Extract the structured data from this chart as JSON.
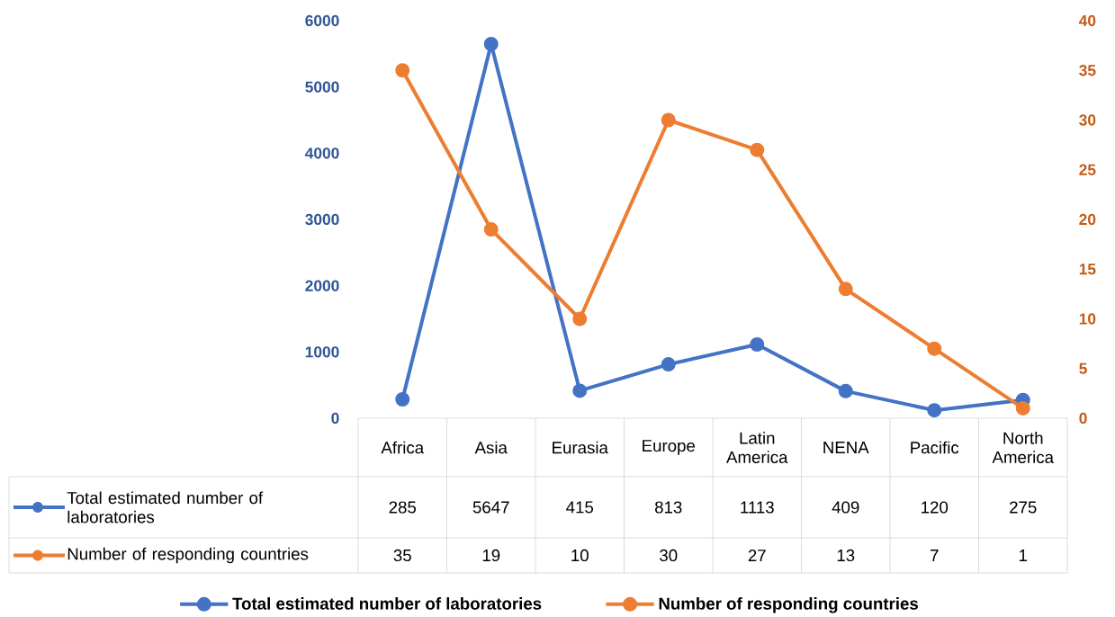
{
  "chart_data": {
    "type": "line",
    "categories": [
      "Africa",
      "Asia",
      "Eurasia",
      "Europe",
      "Latin America",
      "NENA",
      "Pacific",
      "North America"
    ],
    "series": [
      {
        "name": "Total estimated number of laboratories",
        "color": "#4472c4",
        "values": [
          285,
          5647,
          415,
          813,
          1113,
          409,
          120,
          275
        ]
      },
      {
        "name": "Number of responding countries",
        "color": "#ed7d31",
        "axis": "y2",
        "values": [
          35,
          19,
          10,
          30,
          27,
          13,
          7,
          1
        ]
      }
    ],
    "ylim": [
      0,
      6000
    ],
    "yticks": [
      0,
      1000,
      2000,
      3000,
      4000,
      5000,
      6000
    ],
    "y2lim": [
      0,
      40
    ],
    "y2ticks": [
      0,
      5,
      10,
      15,
      20,
      25,
      30,
      35,
      40
    ],
    "marker": "circle",
    "line_style": "solid",
    "data_labels": true,
    "legend": "bottom"
  }
}
